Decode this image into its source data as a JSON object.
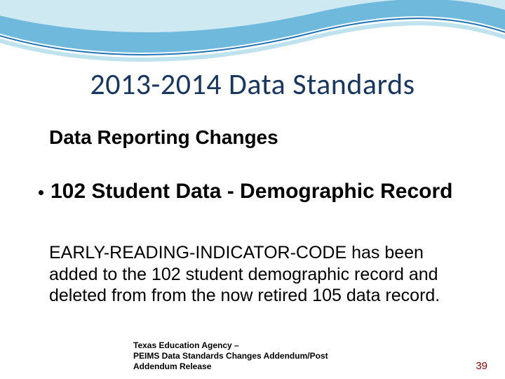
{
  "decoration": {
    "wave": {
      "outer_stroke": "#bfe2ef",
      "outer_stroke_width": 6,
      "outline_stroke": "#1f73b7",
      "outline_stroke_width": 2,
      "fill_primary": "#6fb9dc",
      "fill_highlight": "#cfe9f3"
    }
  },
  "title": {
    "text": "2013-2014 Data Standards",
    "color": "#17375e",
    "fontsize_pt": 32
  },
  "subtitle": {
    "text": "Data Reporting Changes",
    "fontsize_pt": 21,
    "weight": 700
  },
  "bullet": {
    "heading": "102 Student Data - Demographic Record",
    "fontsize_pt": 23,
    "weight": 700
  },
  "body": {
    "text": "EARLY-READING-INDICATOR-CODE has been added to the 102 student demographic record and deleted from from the now retired 105 data record.",
    "fontsize_pt": 19
  },
  "footer": {
    "text": "Texas Education Agency –\n PEIMS Data Standards Changes Addendum/Post Addendum Release",
    "fontsize_pt": 9,
    "weight": 700
  },
  "page_number": {
    "value": "39",
    "color": "#8c0000",
    "fontsize_pt": 11
  }
}
